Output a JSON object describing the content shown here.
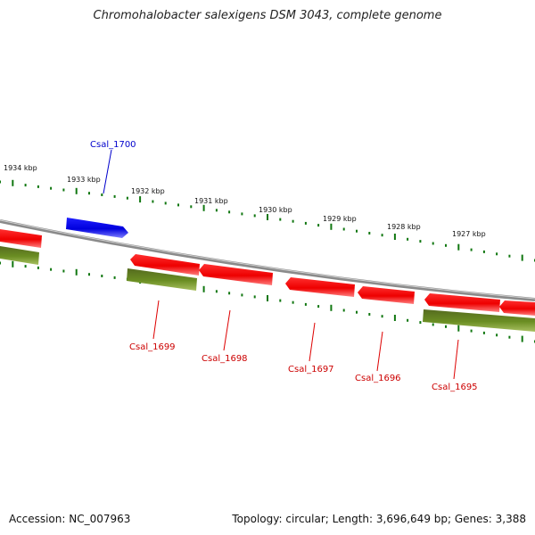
{
  "title": "Chromohalobacter salexigens DSM 3043, complete genome",
  "footer": {
    "accession": "Accession: NC_007963",
    "summary": "Topology: circular; Length: 3,696,649 bp; Genes: 3,388"
  },
  "colors": {
    "forward_gene": "#0000ee",
    "reverse_gene": "#ee0000",
    "cds_track": "#6b8e23",
    "backbone": "#888888",
    "tick": "#117711"
  },
  "scale_labels": [
    "1934 kbp",
    "1933 kbp",
    "1932 kbp",
    "1931 kbp",
    "1930 kbp",
    "1929 kbp",
    "1928 kbp",
    "1927 kbp"
  ],
  "gene_labels": [
    {
      "name": "Csal_1700",
      "strand": "forward"
    },
    {
      "name": "Csal_1699",
      "strand": "reverse"
    },
    {
      "name": "Csal_1698",
      "strand": "reverse"
    },
    {
      "name": "Csal_1697",
      "strand": "reverse"
    },
    {
      "name": "Csal_1696",
      "strand": "reverse"
    },
    {
      "name": "Csal_1695",
      "strand": "reverse"
    }
  ]
}
